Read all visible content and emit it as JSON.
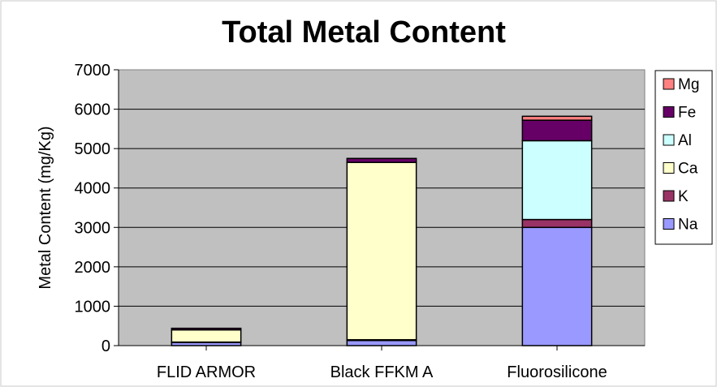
{
  "chart_data": {
    "type": "bar",
    "stacked": true,
    "title": "Total Metal Content",
    "xlabel": "",
    "ylabel": "Metal Content (mg/Kg)",
    "ylim": [
      0,
      7000
    ],
    "yticks": [
      0,
      1000,
      2000,
      3000,
      4000,
      5000,
      6000,
      7000
    ],
    "grid": true,
    "plot_background": "#c0c0c0",
    "legend_position": "right",
    "categories": [
      "FLID ARMOR",
      "Black FFKM A",
      "Fluorosilicone"
    ],
    "series": [
      {
        "name": "Na",
        "color": "#9999ff",
        "values": [
          80,
          130,
          3000
        ]
      },
      {
        "name": "K",
        "color": "#993366",
        "values": [
          10,
          20,
          200
        ]
      },
      {
        "name": "Ca",
        "color": "#ffffcc",
        "values": [
          310,
          4500,
          0
        ]
      },
      {
        "name": "Al",
        "color": "#ccffff",
        "values": [
          0,
          0,
          2000
        ]
      },
      {
        "name": "Fe",
        "color": "#660066",
        "values": [
          40,
          100,
          520
        ]
      },
      {
        "name": "Mg",
        "color": "#ff8080",
        "values": [
          0,
          0,
          100
        ]
      }
    ]
  }
}
